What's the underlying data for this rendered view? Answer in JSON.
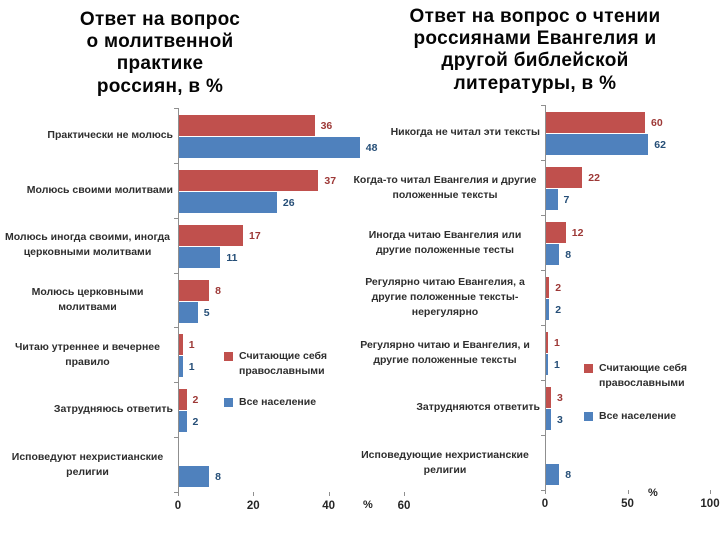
{
  "chart_data": [
    {
      "type": "bar",
      "orientation": "horizontal",
      "title": "Ответ на вопрос\nо молитвенной\nпрактике\nроссиян, в %",
      "xlabel": "%",
      "xlim": [
        0,
        60
      ],
      "xticks": [
        0,
        20,
        40,
        60
      ],
      "grid": false,
      "legend_position": "inside-right",
      "categories": [
        "Практически не молюсь",
        "Молюсь своими молитвами",
        "Молюсь иногда своими, иногда церковными молитвами",
        "Молюсь церковными молитвами",
        "Читаю утреннее и вечернее правило",
        "Затрудняюсь ответить",
        "Исповедуют нехристианские религии"
      ],
      "series": [
        {
          "name": "Считающие себя православными",
          "color": "#c0504d",
          "label_color": "#9d3836",
          "values": [
            36,
            37,
            17,
            8,
            1,
            2,
            null
          ]
        },
        {
          "name": "Все население",
          "color": "#4f81bd",
          "label_color": "#254e77",
          "values": [
            48,
            26,
            11,
            5,
            1,
            2,
            8
          ]
        }
      ]
    },
    {
      "type": "bar",
      "orientation": "horizontal",
      "title": "Ответ на вопрос о чтении\nроссиянами Евангелия и\nдругой библейской\nлитературы, в %",
      "xlabel": "%",
      "xlim": [
        0,
        100
      ],
      "xticks": [
        0,
        50,
        100
      ],
      "grid": false,
      "legend_position": "inside-right",
      "categories": [
        "Никогда не читал эти тексты",
        "Когда-то читал Евангелия и другие положенные тексты",
        "Иногда читаю Евангелия или другие положенные тесты",
        "Регулярно читаю Евангелия, а другие положенные тексты- нерегулярно",
        "Регулярно читаю и Евангелия, и другие положенные тексты",
        "Затрудняются ответить",
        "Исповедующие нехристианские религии"
      ],
      "series": [
        {
          "name": "Считающие себя православными",
          "color": "#c0504d",
          "label_color": "#9d3836",
          "values": [
            60,
            22,
            12,
            2,
            1,
            3,
            null
          ]
        },
        {
          "name": "Все население",
          "color": "#4f81bd",
          "label_color": "#254e77",
          "values": [
            62,
            7,
            8,
            2,
            1,
            3,
            8
          ]
        }
      ]
    }
  ]
}
